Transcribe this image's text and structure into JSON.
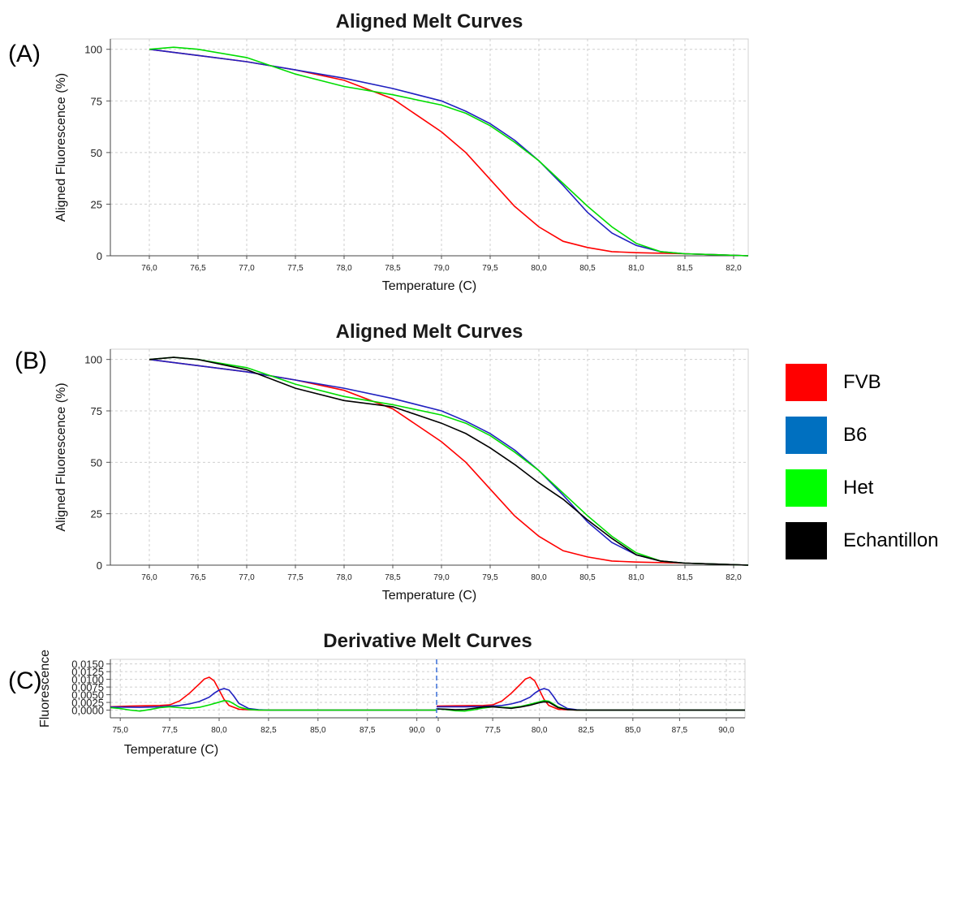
{
  "legend": [
    {
      "label": "FVB",
      "color": "#ff0000"
    },
    {
      "label": "B6",
      "color": "#0070c0"
    },
    {
      "label": "Het",
      "color": "#00ff00"
    },
    {
      "label": "Echantillon",
      "color": "#000000"
    }
  ],
  "chart_data": [
    {
      "panel": "(A)",
      "type": "line",
      "title": "Aligned Melt Curves",
      "xlabel": "Temperature (C)",
      "ylabel": "Aligned Fluorescence (%)",
      "xlim": [
        75.6,
        82.15
      ],
      "ylim": [
        0,
        105
      ],
      "xticks": [
        "76,0",
        "76,5",
        "77,0",
        "77,5",
        "78,0",
        "78,5",
        "79,0",
        "79,5",
        "80,0",
        "80,5",
        "81,0",
        "81,5",
        "82,0"
      ],
      "yticks": [
        "0",
        "25",
        "50",
        "75",
        "100"
      ],
      "grid": true,
      "series": [
        {
          "color": "#ff0000",
          "x": [
            76,
            76.5,
            77,
            77.5,
            78,
            78.5,
            79,
            79.25,
            79.5,
            79.75,
            80,
            80.25,
            80.5,
            80.75,
            81,
            81.5,
            82.15
          ],
          "y": [
            100,
            97,
            94,
            90,
            85,
            76,
            60,
            50,
            37,
            24,
            14,
            7,
            4,
            2,
            1.5,
            1,
            0
          ]
        },
        {
          "color": "#2020c0",
          "x": [
            76,
            76.5,
            77,
            77.5,
            78,
            78.5,
            79,
            79.25,
            79.5,
            79.75,
            80,
            80.25,
            80.5,
            80.75,
            81,
            81.25,
            81.5,
            82.15
          ],
          "y": [
            100,
            97,
            94,
            90,
            86,
            81,
            75,
            70,
            64,
            56,
            46,
            34,
            21,
            11,
            5,
            2,
            1,
            0
          ]
        },
        {
          "color": "#00dd00",
          "x": [
            76,
            76.25,
            76.5,
            77,
            77.5,
            78,
            78.5,
            79,
            79.25,
            79.5,
            79.75,
            80,
            80.25,
            80.5,
            80.75,
            81,
            81.25,
            81.5,
            82.15
          ],
          "y": [
            100,
            101,
            100,
            96,
            88,
            82,
            78,
            73,
            69,
            63,
            55,
            46,
            35,
            24,
            14,
            6,
            2,
            1,
            0
          ]
        }
      ]
    },
    {
      "panel": "(B)",
      "type": "line",
      "title": "Aligned Melt Curves",
      "xlabel": "Temperature (C)",
      "ylabel": "Aligned Fluorescence (%)",
      "xlim": [
        75.6,
        82.15
      ],
      "ylim": [
        0,
        105
      ],
      "xticks": [
        "76,0",
        "76,5",
        "77,0",
        "77,5",
        "78,0",
        "78,5",
        "79,0",
        "79,5",
        "80,0",
        "80,5",
        "81,0",
        "81,5",
        "82,0"
      ],
      "yticks": [
        "0",
        "25",
        "50",
        "75",
        "100"
      ],
      "grid": true,
      "series": [
        {
          "color": "#ff0000",
          "x": [
            76,
            76.5,
            77,
            77.5,
            78,
            78.5,
            79,
            79.25,
            79.5,
            79.75,
            80,
            80.25,
            80.5,
            80.75,
            81,
            81.5,
            82.15
          ],
          "y": [
            100,
            97,
            94,
            90,
            85,
            76,
            60,
            50,
            37,
            24,
            14,
            7,
            4,
            2,
            1.5,
            1,
            0
          ]
        },
        {
          "color": "#2020c0",
          "x": [
            76,
            76.5,
            77,
            77.5,
            78,
            78.5,
            79,
            79.25,
            79.5,
            79.75,
            80,
            80.25,
            80.5,
            80.75,
            81,
            81.25,
            81.5,
            82.15
          ],
          "y": [
            100,
            97,
            94,
            90,
            86,
            81,
            75,
            70,
            64,
            56,
            46,
            34,
            21,
            11,
            5,
            2,
            1,
            0
          ]
        },
        {
          "color": "#00dd00",
          "x": [
            76,
            76.25,
            76.5,
            77,
            77.5,
            78,
            78.5,
            79,
            79.25,
            79.5,
            79.75,
            80,
            80.25,
            80.5,
            80.75,
            81,
            81.25,
            81.5,
            82.15
          ],
          "y": [
            100,
            101,
            100,
            96,
            88,
            82,
            78,
            73,
            69,
            63,
            55,
            46,
            35,
            24,
            14,
            6,
            2,
            1,
            0
          ]
        },
        {
          "color": "#000000",
          "x": [
            76,
            76.25,
            76.5,
            77,
            77.5,
            78,
            78.5,
            79,
            79.25,
            79.5,
            79.75,
            80,
            80.25,
            80.5,
            80.75,
            81,
            81.25,
            81.5,
            82.15
          ],
          "y": [
            100,
            101,
            100,
            95,
            86,
            80,
            77,
            69,
            64,
            57,
            49,
            40,
            32,
            22,
            13,
            5,
            2,
            1,
            0
          ]
        }
      ]
    },
    {
      "panel": "(C)",
      "type": "line",
      "title": "Derivative Melt Curves",
      "xlabel": "Temperature (C)",
      "ylabel": "Fluorescence",
      "ylim": [
        -0.0025,
        0.0165
      ],
      "yticks": [
        "0,0000",
        "0,0025",
        "0,0050",
        "0,0075",
        "0,0100",
        "0,0125",
        "0,0150"
      ],
      "xticks_left": [
        "75,0",
        "77,5",
        "80,0",
        "82,5",
        "85,0",
        "87,5",
        "90,0"
      ],
      "xticks_right": [
        "0",
        "77,5",
        "80,0",
        "82,5",
        "85,0",
        "87,5",
        "90,0"
      ],
      "grid": true,
      "left": {
        "xlim": [
          74.5,
          91.0
        ],
        "series": [
          {
            "color": "#ff0000",
            "x": [
              74.5,
              75.5,
              77,
              77.5,
              78,
              78.5,
              79,
              79.25,
              79.5,
              79.75,
              80,
              80.25,
              80.5,
              81,
              81.5,
              82,
              82.5,
              91
            ],
            "y": [
              0.0011,
              0.0013,
              0.0015,
              0.0017,
              0.003,
              0.0055,
              0.0085,
              0.0101,
              0.0107,
              0.0095,
              0.0065,
              0.0035,
              0.0015,
              0.0003,
              0.0001,
              0,
              0,
              0
            ]
          },
          {
            "color": "#2020c0",
            "x": [
              74.5,
              76,
              77,
              78,
              78.5,
              79,
              79.5,
              79.75,
              80,
              80.25,
              80.5,
              80.75,
              81,
              81.5,
              82,
              82.5,
              91
            ],
            "y": [
              0.001,
              0.0009,
              0.0011,
              0.0015,
              0.002,
              0.0028,
              0.0042,
              0.0055,
              0.0065,
              0.007,
              0.0065,
              0.0045,
              0.0022,
              0.0005,
              0.0001,
              0,
              0
            ]
          },
          {
            "color": "#00dd00",
            "x": [
              74.5,
              75,
              75.5,
              76,
              76.5,
              77,
              77.5,
              78,
              78.5,
              79,
              79.5,
              80,
              80.25,
              80.5,
              80.75,
              81,
              81.5,
              82,
              82.5,
              91
            ],
            "y": [
              0.0008,
              0.0005,
              0,
              -0.0003,
              0.0002,
              0.0008,
              0.0011,
              0.0008,
              0.0006,
              0.0009,
              0.0017,
              0.0026,
              0.0031,
              0.0029,
              0.002,
              0.001,
              0.0002,
              0,
              0,
              0
            ]
          }
        ]
      },
      "right": {
        "xlim": [
          74.5,
          91.0
        ],
        "series": [
          {
            "color": "#ff0000",
            "x": [
              74.5,
              75.5,
              77,
              77.5,
              78,
              78.5,
              79,
              79.25,
              79.5,
              79.75,
              80,
              80.25,
              80.5,
              81,
              81.5,
              82,
              82.5,
              91
            ],
            "y": [
              0.0013,
              0.0014,
              0.0015,
              0.0017,
              0.003,
              0.0055,
              0.0085,
              0.0101,
              0.0107,
              0.0095,
              0.0065,
              0.0035,
              0.0015,
              0.0003,
              0.0001,
              0,
              0,
              0
            ]
          },
          {
            "color": "#2020c0",
            "x": [
              74.5,
              76,
              77,
              78,
              78.5,
              79,
              79.5,
              79.75,
              80,
              80.25,
              80.5,
              80.75,
              81,
              81.5,
              82,
              82.5,
              91
            ],
            "y": [
              0.0011,
              0.0011,
              0.0012,
              0.0015,
              0.002,
              0.0028,
              0.0042,
              0.0055,
              0.0065,
              0.007,
              0.0065,
              0.0045,
              0.0022,
              0.0005,
              0.0001,
              0,
              0
            ]
          },
          {
            "color": "#00dd00",
            "x": [
              74.5,
              75,
              75.5,
              76,
              76.5,
              77,
              77.5,
              78,
              78.5,
              79,
              79.5,
              80,
              80.25,
              80.5,
              80.75,
              81,
              81.5,
              82,
              82.5,
              91
            ],
            "y": [
              0.0004,
              0.0002,
              -0.0002,
              -0.0003,
              0.0001,
              0.0007,
              0.0011,
              0.0009,
              0.0008,
              0.0012,
              0.0019,
              0.0027,
              0.0031,
              0.0029,
              0.002,
              0.001,
              0.0002,
              0,
              0,
              0
            ]
          },
          {
            "color": "#000000",
            "x": [
              74.5,
              75,
              75.5,
              76,
              76.5,
              77,
              77.5,
              78,
              78.5,
              79,
              79.5,
              80,
              80.25,
              80.5,
              80.75,
              81,
              81.5,
              82,
              82.5,
              91
            ],
            "y": [
              0.0004,
              0.0003,
              0.0001,
              0.0002,
              0.0006,
              0.001,
              0.0011,
              0.0008,
              0.0006,
              0.001,
              0.0016,
              0.0024,
              0.0027,
              0.0026,
              0.0017,
              0.0008,
              0.0002,
              0,
              0,
              0
            ]
          }
        ]
      }
    }
  ]
}
